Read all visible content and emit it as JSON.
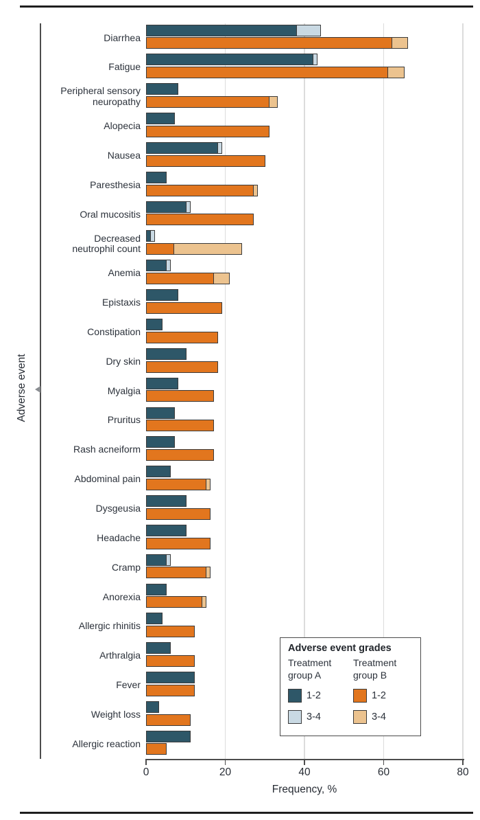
{
  "figure": {
    "x_axis_title": "Frequency, %",
    "y_axis_title": "Adverse event"
  },
  "legend": {
    "title": "Adverse event grades",
    "groups": [
      {
        "header": "Treatment\ngroup A",
        "entries": [
          {
            "label": "1-2",
            "color": "#2e5768"
          },
          {
            "label": "3-4",
            "color": "#c9d9e3"
          }
        ]
      },
      {
        "header": "Treatment\ngroup B",
        "entries": [
          {
            "label": "1-2",
            "color": "#e2761e"
          },
          {
            "label": "3-4",
            "color": "#ecc38f"
          }
        ]
      }
    ]
  },
  "chart_data": {
    "type": "bar",
    "orientation": "horizontal",
    "stacked": true,
    "title": "",
    "xlabel": "Frequency, %",
    "ylabel": "Adverse event",
    "xlim": [
      0,
      80
    ],
    "x_ticks": [
      0,
      20,
      40,
      60,
      80
    ],
    "grid": "vertical",
    "legend_position": "bottom-right",
    "categories": [
      "Diarrhea",
      "Fatigue",
      "Peripheral sensory\nneuropathy",
      "Alopecia",
      "Nausea",
      "Paresthesia",
      "Oral mucositis",
      "Decreased\nneutrophil count",
      "Anemia",
      "Epistaxis",
      "Constipation",
      "Dry skin",
      "Myalgia",
      "Pruritus",
      "Rash acneiform",
      "Abdominal pain",
      "Dysgeusia",
      "Headache",
      "Cramp",
      "Anorexia",
      "Allergic rhinitis",
      "Arthralgia",
      "Fever",
      "Weight loss",
      "Allergic reaction"
    ],
    "series": [
      {
        "name": "Treatment group A, grade 1-2",
        "color": "#2e5768",
        "values": [
          38,
          42,
          8,
          7,
          18,
          5,
          10,
          1,
          5,
          8,
          4,
          10,
          8,
          7,
          7,
          6,
          10,
          10,
          5,
          5,
          4,
          6,
          12,
          3,
          11
        ]
      },
      {
        "name": "Treatment group A, grade 3-4",
        "color": "#c9d9e3",
        "values": [
          6,
          1,
          0,
          0,
          1,
          0,
          1,
          1,
          1,
          0,
          0,
          0,
          0,
          0,
          0,
          0,
          0,
          0,
          1,
          0,
          0,
          0,
          0,
          0,
          0
        ]
      },
      {
        "name": "Treatment group B, grade 1-2",
        "color": "#e2761e",
        "values": [
          62,
          61,
          31,
          31,
          30,
          27,
          27,
          7,
          17,
          19,
          18,
          18,
          17,
          17,
          17,
          15,
          16,
          16,
          15,
          14,
          12,
          12,
          12,
          11,
          5
        ]
      },
      {
        "name": "Treatment group B, grade 3-4",
        "color": "#ecc38f",
        "values": [
          4,
          4,
          2,
          0,
          0,
          1,
          0,
          17,
          4,
          0,
          0,
          0,
          0,
          0,
          0,
          1,
          0,
          0,
          1,
          1,
          0,
          0,
          0,
          0,
          0
        ]
      }
    ]
  }
}
